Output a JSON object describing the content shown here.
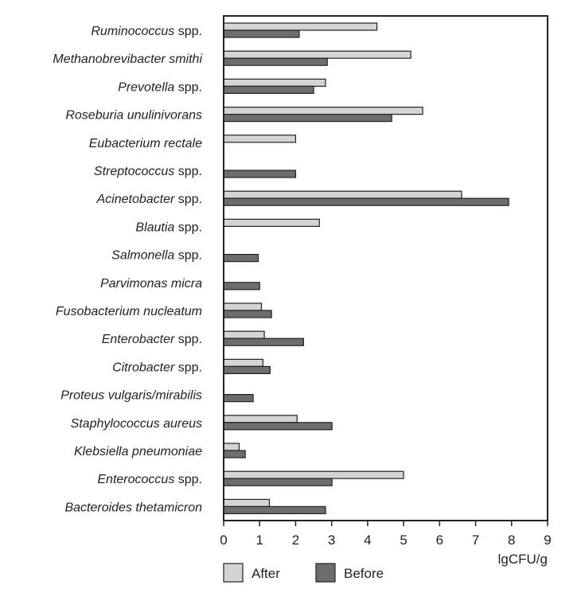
{
  "chart_data": {
    "type": "bar",
    "orientation": "horizontal",
    "xlabel": "lgCFU/g",
    "xlim": [
      0,
      9
    ],
    "xticks": [
      "0",
      "1",
      "2",
      "3",
      "4",
      "5",
      "6",
      "7",
      "8",
      "9"
    ],
    "categories": [
      {
        "italic": "Ruminococcus",
        "plain": " spp."
      },
      {
        "italic": "Methanobrevibacter smithi",
        "plain": ""
      },
      {
        "italic": "Prevotella",
        "plain": " spp."
      },
      {
        "italic": "Roseburia unulinivorans",
        "plain": ""
      },
      {
        "italic": "Eubacterium rectale",
        "plain": ""
      },
      {
        "italic": "Streptococcus",
        "plain": " spp."
      },
      {
        "italic": "Acinetobacter",
        "plain": " spp."
      },
      {
        "italic": "Blautia",
        "plain": " spp."
      },
      {
        "italic": "Salmonella",
        "plain": " spp."
      },
      {
        "italic": "Parvimonas micra",
        "plain": ""
      },
      {
        "italic": "Fusobacterium nucleatum",
        "plain": ""
      },
      {
        "italic": "Enterobacter",
        "plain": " spp."
      },
      {
        "italic": "Citrobacter",
        "plain": " spp."
      },
      {
        "italic": "Proteus vulgaris/mirabilis",
        "plain": ""
      },
      {
        "italic": "Staphylococcus aureus",
        "plain": ""
      },
      {
        "italic": "Klebsiella pneumoniae",
        "plain": ""
      },
      {
        "italic": "Enterococcus",
        "plain": " spp."
      },
      {
        "italic": "Bacteroides thetamicron",
        "plain": ""
      }
    ],
    "series": [
      {
        "name": "After",
        "color": "#d4d4d4",
        "values": [
          4.26,
          5.2,
          2.83,
          5.53,
          2.0,
          0,
          6.61,
          2.66,
          0,
          0,
          1.05,
          1.13,
          1.09,
          0,
          2.04,
          0.43,
          5.0,
          1.27
        ]
      },
      {
        "name": "Before",
        "color": "#6d6d6d",
        "values": [
          2.1,
          2.88,
          2.5,
          4.67,
          0,
          2.0,
          7.92,
          0,
          0.96,
          1.0,
          1.33,
          2.22,
          1.29,
          0.82,
          3.01,
          0.6,
          3.01,
          2.83
        ]
      }
    ],
    "legend": {
      "placement": "bottom-left",
      "entries": [
        "After",
        "Before"
      ]
    },
    "grid": false
  }
}
